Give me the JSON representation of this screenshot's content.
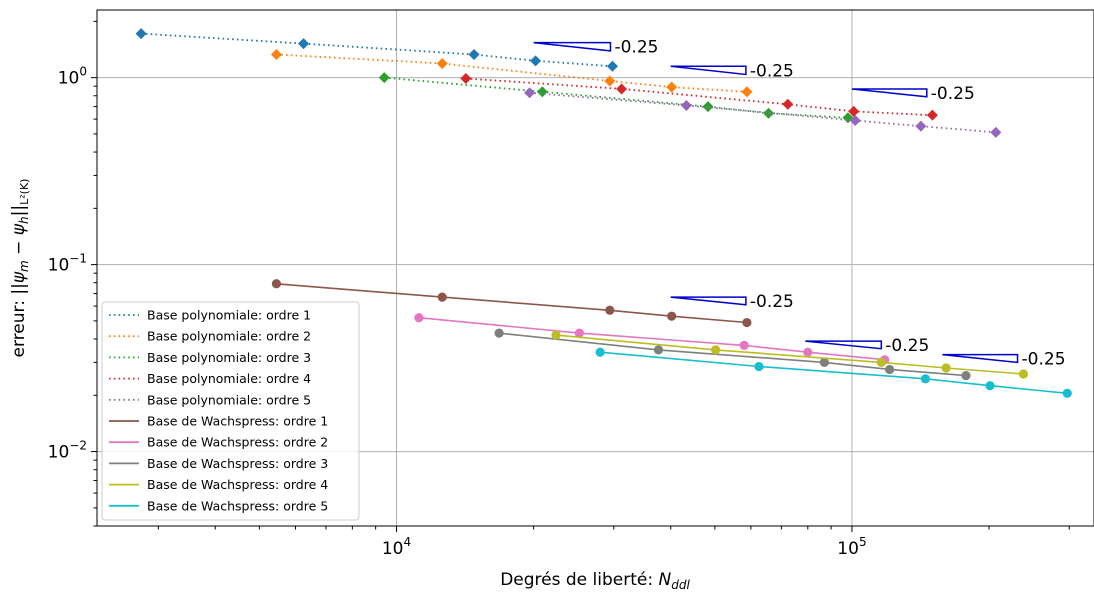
{
  "chart_data": {
    "type": "line",
    "xlabel": "Degrés de liberté: N_ddl",
    "ylabel": "erreur: ||ψ_m − ψ_h||_L²(K)",
    "xscale": "log",
    "yscale": "log",
    "xlim": [
      2200,
      340000
    ],
    "ylim": [
      0.004,
      2.3
    ],
    "grid": true,
    "legend_position": "lower-left",
    "x_ticks": [
      {
        "value": 10000,
        "base": "10",
        "exp": "4"
      },
      {
        "value": 100000,
        "base": "10",
        "exp": "5"
      }
    ],
    "y_ticks": [
      {
        "value": 1,
        "base": "10",
        "exp": "0"
      },
      {
        "value": 0.1,
        "base": "10",
        "exp": "−1"
      },
      {
        "value": 0.01,
        "base": "10",
        "exp": "−2"
      }
    ],
    "series": [
      {
        "name": "Base polynomiale: ordre 1",
        "color": "#1f77b4",
        "style": "dotted",
        "marker": "diamond",
        "x": [
          2750,
          6250,
          14800,
          20200,
          29800
        ],
        "y": [
          1.72,
          1.52,
          1.33,
          1.23,
          1.15
        ]
      },
      {
        "name": "Base polynomiale: ordre 2",
        "color": "#ff7f0e",
        "style": "dotted",
        "marker": "diamond",
        "x": [
          5450,
          12600,
          29400,
          40200,
          58800
        ],
        "y": [
          1.33,
          1.19,
          0.96,
          0.89,
          0.84
        ]
      },
      {
        "name": "Base polynomiale: ordre 3",
        "color": "#2ca02c",
        "style": "dotted",
        "marker": "diamond",
        "x": [
          9400,
          20900,
          48300,
          65600,
          98000
        ],
        "y": [
          1.0,
          0.84,
          0.7,
          0.645,
          0.61
        ]
      },
      {
        "name": "Base polynomiale: ordre 4",
        "color": "#d62728",
        "style": "dotted",
        "marker": "diamond",
        "x": [
          14200,
          31200,
          72300,
          100900,
          150200
        ],
        "y": [
          0.99,
          0.87,
          0.72,
          0.66,
          0.63
        ]
      },
      {
        "name": "Base polynomiale: ordre 5",
        "color": "#9467bd",
        "style": "dotted",
        "marker": "diamond",
        "x": [
          19600,
          43300,
          101700,
          141700,
          207000
        ],
        "y": [
          0.83,
          0.71,
          0.59,
          0.55,
          0.51
        ]
      },
      {
        "name": "Base de Wachspress: ordre 1",
        "color": "#8c564b",
        "style": "solid",
        "marker": "circle",
        "x": [
          5450,
          12600,
          29400,
          40200,
          58800
        ],
        "y": [
          0.079,
          0.067,
          0.057,
          0.053,
          0.049
        ]
      },
      {
        "name": "Base de Wachspress: ordre 2",
        "color": "#e377c2",
        "style": "solid",
        "marker": "circle",
        "x": [
          11200,
          25200,
          58000,
          80000,
          118000
        ],
        "y": [
          0.052,
          0.043,
          0.037,
          0.034,
          0.031
        ]
      },
      {
        "name": "Base de Wachspress: ordre 3",
        "color": "#7f7f7f",
        "style": "solid",
        "marker": "circle",
        "x": [
          16800,
          37600,
          87000,
          121000,
          178000
        ],
        "y": [
          0.043,
          0.035,
          0.03,
          0.0275,
          0.0255
        ]
      },
      {
        "name": "Base de Wachspress: ordre 4",
        "color": "#bcbd22",
        "style": "solid",
        "marker": "circle",
        "x": [
          22400,
          50200,
          116000,
          161000,
          238000
        ],
        "y": [
          0.042,
          0.035,
          0.03,
          0.028,
          0.026
        ]
      },
      {
        "name": "Base de Wachspress: ordre 5",
        "color": "#17becf",
        "style": "solid",
        "marker": "circle",
        "x": [
          28000,
          62500,
          145000,
          201000,
          297000
        ],
        "y": [
          0.034,
          0.0285,
          0.0245,
          0.0225,
          0.0205
        ]
      }
    ],
    "annotations": [
      {
        "text": "-0.25",
        "x_start": 20000,
        "x_end": 29500,
        "y_top": 1.54,
        "y_bottom": 1.39
      },
      {
        "text": "-0.25",
        "x_start": 40000,
        "x_end": 58500,
        "y_top": 1.15,
        "y_bottom": 1.04
      },
      {
        "text": "-0.25",
        "x_start": 100000,
        "x_end": 146000,
        "y_top": 0.87,
        "y_bottom": 0.79
      },
      {
        "text": "-0.25",
        "x_start": 40000,
        "x_end": 58500,
        "y_top": 0.067,
        "y_bottom": 0.061
      },
      {
        "text": "-0.25",
        "x_start": 79000,
        "x_end": 116000,
        "y_top": 0.039,
        "y_bottom": 0.0355
      },
      {
        "text": "-0.25",
        "x_start": 158000,
        "x_end": 231000,
        "y_top": 0.033,
        "y_bottom": 0.03
      }
    ]
  }
}
